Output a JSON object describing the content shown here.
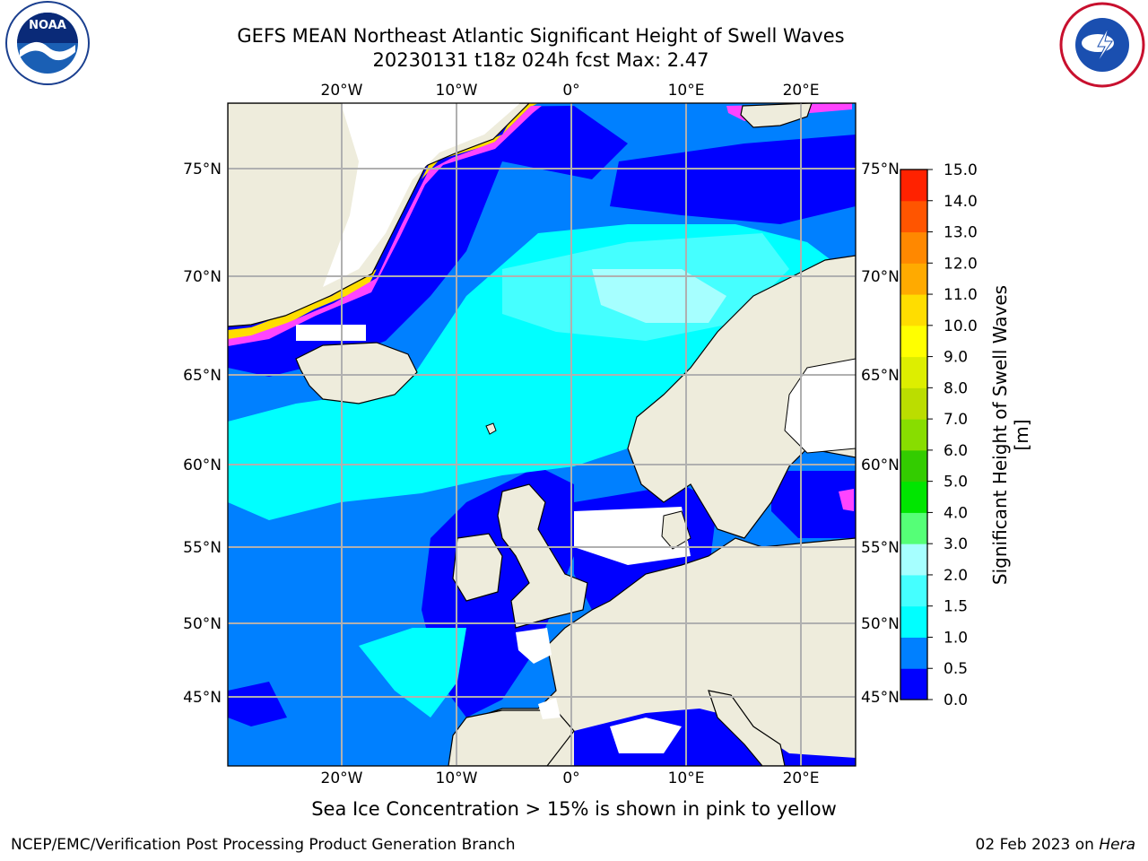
{
  "header": {
    "title_line1": "GEFS MEAN Northeast Atlantic Significant Height of Swell Waves",
    "title_line2": "20230131 t18z 024h fcst   Max: 2.47"
  },
  "logos": {
    "left": "noaa-logo",
    "right": "national-weather-service-logo"
  },
  "map": {
    "lon_ticks": [
      "20°W",
      "10°W",
      "0°",
      "10°E",
      "20°E"
    ],
    "lat_ticks": [
      "75°N",
      "70°N",
      "65°N",
      "60°N",
      "55°N",
      "50°N",
      "45°N"
    ],
    "colors": {
      "land": "#eeecdc",
      "ocean_low": "#0000ff",
      "ocean_mid": "#0080ff",
      "ocean_high": "#00ffff",
      "ocean_top": "#45ffff",
      "ice_pink": "#ff44ff",
      "ice_orange": "#ff9900",
      "ice_yellow": "#ffdd00",
      "grid": "#b0b0b0"
    }
  },
  "colorbar": {
    "label": "Significant Height of Swell Waves [m]",
    "ticks": [
      "15.0",
      "14.0",
      "13.0",
      "12.0",
      "11.0",
      "10.0",
      "9.0",
      "8.0",
      "7.0",
      "6.0",
      "5.0",
      "4.0",
      "3.0",
      "2.0",
      "1.5",
      "1.0",
      "0.5",
      "0.0"
    ],
    "colors": [
      "#0000ff",
      "#0080ff",
      "#00ffff",
      "#45ffff",
      "#a6ffff",
      "#55ff77",
      "#00e600",
      "#33cc00",
      "#88dd00",
      "#bbdd00",
      "#ddee00",
      "#ffff00",
      "#ffdd00",
      "#ffaa00",
      "#ff8800",
      "#ff5500",
      "#ff2200"
    ]
  },
  "caption": "Sea Ice Concentration > 15% is shown in pink to yellow",
  "footer": {
    "left": "NCEP/EMC/Verification Post Processing Product Generation Branch",
    "right_date": "02 Feb 2023 on ",
    "right_host": "Hera"
  }
}
